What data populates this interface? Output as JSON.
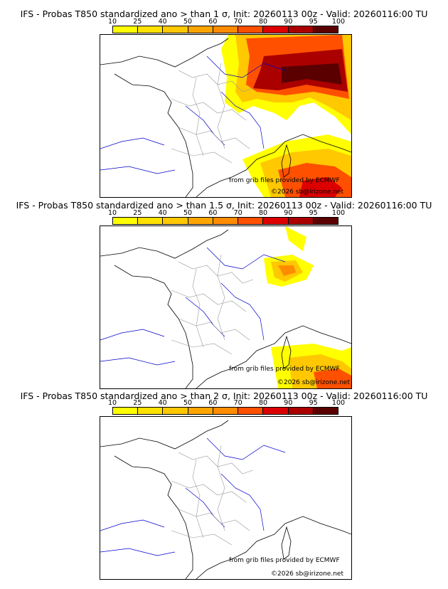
{
  "colorbar": {
    "ticks": [
      "10",
      "25",
      "40",
      "50",
      "60",
      "70",
      "80",
      "90",
      "95",
      "100"
    ],
    "colors": [
      "#ffff00",
      "#ffe100",
      "#ffc800",
      "#ffa500",
      "#ff8c00",
      "#ff5000",
      "#dc0000",
      "#aa0000",
      "#5a0000"
    ]
  },
  "panels": [
    {
      "title": "IFS - Probas T850  standardized ano > than 1 σ, Init: 20260113 00z - Valid: 20260116:00 TU",
      "credit_line1": "from grib files provided by ECMWF",
      "credit_line2": "©2026 sb@irizone.net"
    },
    {
      "title": "IFS - Probas T850  standardized ano > than 1.5 σ, Init: 20260113 00z - Valid: 20260116:00 TU",
      "credit_line1": "from grib files provided by ECMWF",
      "credit_line2": "©2026 sb@irizone.net"
    },
    {
      "title": "IFS - Probas T850  standardized ano > than 2 σ, Init: 20260113 00z - Valid: 20260116:00 TU",
      "credit_line1": "from grib files provided by ECMWF",
      "credit_line2": "©2026 sb@irizone.net"
    }
  ]
}
